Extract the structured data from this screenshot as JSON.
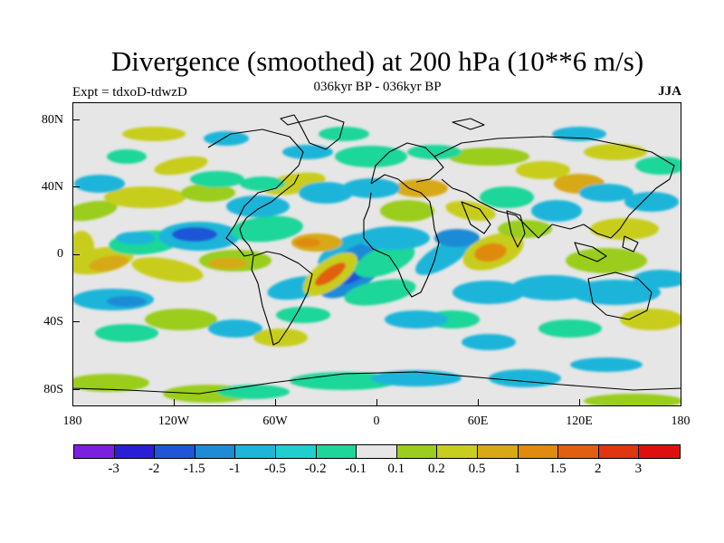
{
  "title": "Divergence (smoothed) at 200 hPa (10**6 m/s)",
  "subtitle": "036kyr BP - 036kyr BP",
  "experiment": "Expt = tdxoD-tdwzD",
  "season": "JJA",
  "latitude_labels": [
    "80N",
    "40N",
    "0",
    "40S",
    "80S"
  ],
  "longitude_labels": [
    "180",
    "120W",
    "60W",
    "0",
    "60E",
    "120E",
    "180"
  ],
  "colorbar": {
    "colors": [
      "#7b1fe0",
      "#2b1fd6",
      "#1f55d6",
      "#1f8bd6",
      "#1fb5d9",
      "#1fcfcf",
      "#1fd69a",
      "#e6e6e6",
      "#9acd1f",
      "#c8cd1f",
      "#d7a915",
      "#e08a0f",
      "#e0600f",
      "#e0360f",
      "#e00f0f"
    ],
    "labels": [
      "-3",
      "-2",
      "-1.5",
      "-1",
      "-0.5",
      "-0.2",
      "-0.1",
      "0.1",
      "0.2",
      "0.5",
      "1",
      "1.5",
      "2",
      "3"
    ]
  },
  "palette": {
    "strong_neg": "#1f55d6",
    "mid_neg": "#1f8bd6",
    "cyan": "#1fb5d9",
    "teal": "#1fcfcf",
    "green": "#1fd69a",
    "neutral": "#e6e6e6",
    "yellowgreen": "#9acd1f",
    "yellow": "#c8cd1f",
    "ochre": "#d7a915",
    "orange": "#e08a0f",
    "redorange": "#e0600f"
  }
}
